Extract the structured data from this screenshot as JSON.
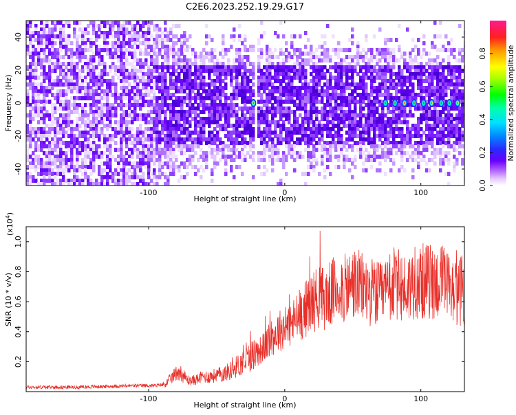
{
  "title": "C2E6.2023.252.19.29.G17",
  "colors": {
    "spectrogram_scale": [
      "#ffffff",
      "#e6ccff",
      "#b366ff",
      "#7a1fff",
      "#5a00ff",
      "#2a2aff",
      "#00aaff",
      "#00ffcc",
      "#00ff00",
      "#ffff00",
      "#ff8000",
      "#ff0040",
      "#ff1a8c"
    ],
    "snr_line": "#e8302a"
  },
  "chart_data": [
    {
      "type": "heatmap",
      "title": "C2E6.2023.252.19.29.G17",
      "xlabel": "Height of straight line (km)",
      "ylabel": "Frequency (Hz)",
      "xlim": [
        -190,
        132
      ],
      "ylim": [
        -50,
        50
      ],
      "xticks": [
        -100,
        0,
        100
      ],
      "yticks": [
        -40,
        -20,
        0,
        20,
        40
      ],
      "colorbar": {
        "label": "Normalized spectral amplitude",
        "range": [
          0,
          1
        ],
        "ticks": [
          0.0,
          0.2,
          0.4,
          0.6,
          0.8
        ]
      },
      "description_values": {
        "strong_lines_x": [
          -23,
          74,
          81,
          88,
          95,
          102,
          108,
          115,
          121,
          127
        ],
        "gap_x": [
          -22,
          74
        ]
      }
    },
    {
      "type": "line",
      "xlabel": "Height of straight line (km)",
      "ylabel": "SNR (10 * v/v)",
      "y_multiplier": "(x10⁴)",
      "xlim": [
        -190,
        132
      ],
      "ylim": [
        0,
        1.1
      ],
      "xticks": [
        -100,
        0,
        100
      ],
      "yticks": [
        0.2,
        0.4,
        0.6,
        0.8,
        1.0
      ],
      "series": [
        {
          "x": [
            -190,
            -170,
            -150,
            -130,
            -110,
            -95,
            -88,
            -82,
            -78,
            -74,
            -70,
            -65,
            -60,
            -55,
            -50,
            -45,
            -40,
            -35,
            -30,
            -25,
            -20,
            -15,
            -10,
            -5,
            0,
            5,
            10,
            15,
            20,
            25,
            30,
            35,
            40,
            45,
            50,
            55,
            60,
            65,
            70,
            75,
            80,
            85,
            90,
            95,
            100,
            105,
            110,
            115,
            120,
            125,
            130,
            132
          ],
          "y": [
            0.03,
            0.03,
            0.03,
            0.035,
            0.04,
            0.04,
            0.05,
            0.1,
            0.14,
            0.1,
            0.07,
            0.08,
            0.1,
            0.1,
            0.11,
            0.12,
            0.14,
            0.17,
            0.2,
            0.24,
            0.26,
            0.3,
            0.35,
            0.4,
            0.43,
            0.45,
            0.5,
            0.55,
            0.6,
            0.63,
            0.62,
            0.66,
            0.7,
            0.68,
            0.72,
            0.7,
            0.68,
            0.66,
            0.64,
            0.66,
            0.72,
            0.7,
            0.68,
            0.74,
            0.73,
            0.74,
            0.72,
            0.74,
            0.7,
            0.66,
            0.68,
            0.65
          ]
        }
      ]
    }
  ]
}
